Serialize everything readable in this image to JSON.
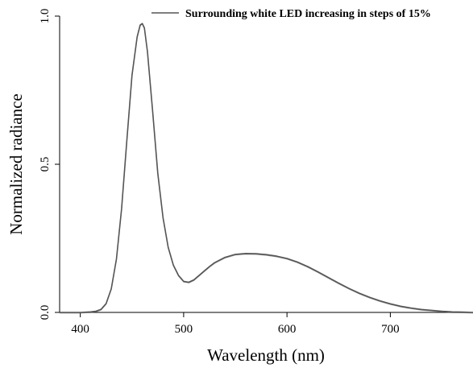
{
  "chart_data": {
    "type": "line",
    "title": "",
    "xlabel": "Wavelength (nm)",
    "ylabel": "Normalized radiance",
    "xlim": [
      380,
      780
    ],
    "ylim": [
      0,
      1.0
    ],
    "x_ticks": [
      400,
      500,
      600,
      700
    ],
    "x_tick_labels": [
      "400",
      "500",
      "600",
      "700"
    ],
    "y_ticks": [
      0,
      0.5,
      1.0
    ],
    "y_tick_labels": [
      "0.0",
      "0.5",
      "1.0"
    ],
    "legend": {
      "placement": "top-right",
      "label": "Surrounding white LED increasing in steps of 15%"
    },
    "grid": false,
    "series": [
      {
        "name": "Surrounding white LED increasing in steps of 15%",
        "color": "#555555",
        "x": [
          380,
          400,
          410,
          415,
          420,
          425,
          430,
          435,
          440,
          445,
          450,
          455,
          458,
          460,
          462,
          465,
          470,
          475,
          480,
          485,
          490,
          495,
          500,
          505,
          510,
          515,
          520,
          525,
          530,
          540,
          550,
          560,
          570,
          580,
          590,
          600,
          610,
          620,
          630,
          640,
          650,
          660,
          670,
          680,
          690,
          700,
          710,
          720,
          730,
          740,
          750,
          760,
          770,
          780
        ],
        "y": [
          0,
          0,
          0.002,
          0.004,
          0.01,
          0.03,
          0.08,
          0.18,
          0.35,
          0.58,
          0.8,
          0.93,
          0.97,
          0.975,
          0.96,
          0.88,
          0.68,
          0.47,
          0.32,
          0.22,
          0.16,
          0.125,
          0.105,
          0.102,
          0.11,
          0.125,
          0.14,
          0.155,
          0.168,
          0.186,
          0.196,
          0.199,
          0.198,
          0.195,
          0.19,
          0.182,
          0.17,
          0.155,
          0.137,
          0.118,
          0.099,
          0.081,
          0.065,
          0.051,
          0.039,
          0.029,
          0.021,
          0.015,
          0.01,
          0.007,
          0.004,
          0.002,
          0.001,
          0
        ]
      }
    ]
  }
}
